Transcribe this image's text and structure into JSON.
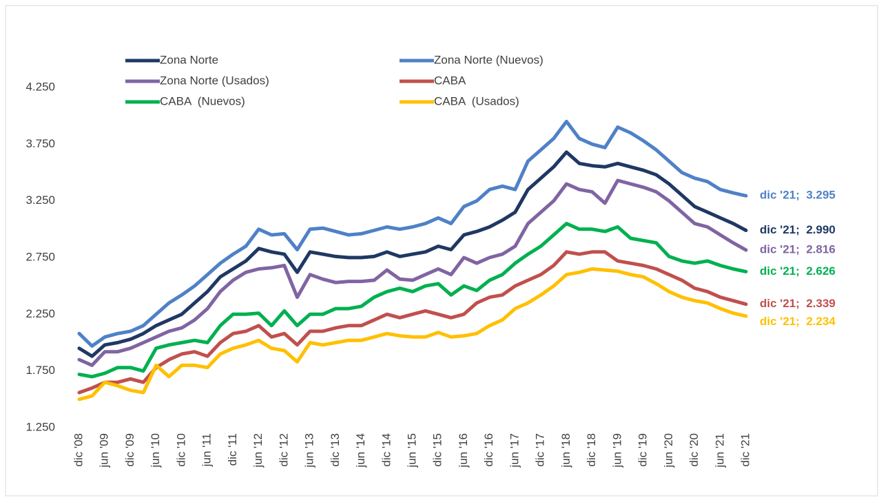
{
  "chart_data": {
    "type": "line",
    "categories": [
      "dic '08",
      null,
      "jun '09",
      null,
      "dic '09",
      null,
      "jun '10",
      null,
      "dic '10",
      null,
      "jun '11",
      null,
      "dic '11",
      null,
      "jun '12",
      null,
      "dic '12",
      null,
      "jun '13",
      null,
      "dic '13",
      null,
      "jun '14",
      null,
      "dic '14",
      null,
      "jun '15",
      null,
      "dic '15",
      null,
      "jun '16",
      null,
      "dic '16",
      null,
      "jun '17",
      null,
      "dic '17",
      null,
      "jun '18",
      null,
      "dic '18",
      null,
      "jun '19",
      null,
      "dic '19",
      null,
      "jun '20",
      null,
      "dic '20",
      null,
      "jun '21",
      null,
      "dic '21"
    ],
    "ylim": [
      1250,
      4250
    ],
    "yticks": [
      {
        "value": 1250,
        "label": "1.250"
      },
      {
        "value": 1750,
        "label": "1.750"
      },
      {
        "value": 2250,
        "label": "2.250"
      },
      {
        "value": 2750,
        "label": "2.750"
      },
      {
        "value": 3250,
        "label": "3.250"
      },
      {
        "value": 3750,
        "label": "3.750"
      },
      {
        "value": 4250,
        "label": "4.250"
      }
    ],
    "grid": false,
    "series": [
      {
        "name": "Zona Norte",
        "color": "#1f3864",
        "end_label": "dic '21;  2.990",
        "values": [
          1950,
          1880,
          1980,
          2000,
          2030,
          2080,
          2150,
          2200,
          2250,
          2350,
          2450,
          2580,
          2650,
          2720,
          2830,
          2800,
          2780,
          2620,
          2800,
          2780,
          2760,
          2750,
          2750,
          2760,
          2800,
          2760,
          2780,
          2800,
          2850,
          2820,
          2950,
          2980,
          3020,
          3080,
          3150,
          3350,
          3450,
          3550,
          3680,
          3580,
          3560,
          3550,
          3580,
          3550,
          3520,
          3480,
          3400,
          3300,
          3200,
          3150,
          3100,
          3050,
          2990
        ]
      },
      {
        "name": "Zona Norte (Nuevos)",
        "color": "#4f81c7",
        "end_label": "dic '21;  3.295",
        "values": [
          2080,
          1970,
          2050,
          2080,
          2100,
          2150,
          2250,
          2350,
          2420,
          2500,
          2600,
          2700,
          2780,
          2850,
          3000,
          2950,
          2960,
          2820,
          3000,
          3010,
          2980,
          2950,
          2960,
          2990,
          3020,
          3000,
          3020,
          3050,
          3100,
          3050,
          3200,
          3250,
          3350,
          3380,
          3350,
          3600,
          3700,
          3800,
          3950,
          3800,
          3750,
          3720,
          3900,
          3850,
          3780,
          3700,
          3600,
          3500,
          3450,
          3420,
          3350,
          3320,
          3295
        ]
      },
      {
        "name": "Zona Norte (Usados)",
        "color": "#8064a2",
        "end_label": "dic '21;  2.816",
        "values": [
          1850,
          1800,
          1920,
          1920,
          1950,
          2000,
          2050,
          2100,
          2130,
          2200,
          2300,
          2450,
          2550,
          2620,
          2650,
          2660,
          2680,
          2400,
          2600,
          2560,
          2530,
          2540,
          2540,
          2550,
          2640,
          2560,
          2550,
          2600,
          2650,
          2600,
          2750,
          2700,
          2750,
          2780,
          2850,
          3050,
          3150,
          3250,
          3400,
          3350,
          3330,
          3230,
          3430,
          3400,
          3370,
          3330,
          3250,
          3150,
          3050,
          3020,
          2950,
          2880,
          2816
        ]
      },
      {
        "name": "CABA",
        "color": "#c0504d",
        "end_label": "dic '21;  2.339",
        "values": [
          1560,
          1600,
          1650,
          1650,
          1680,
          1650,
          1780,
          1850,
          1900,
          1920,
          1880,
          2000,
          2080,
          2100,
          2150,
          2050,
          2080,
          1980,
          2100,
          2100,
          2130,
          2150,
          2150,
          2200,
          2250,
          2220,
          2250,
          2280,
          2250,
          2220,
          2250,
          2350,
          2400,
          2420,
          2500,
          2550,
          2600,
          2680,
          2800,
          2780,
          2800,
          2800,
          2720,
          2700,
          2680,
          2650,
          2600,
          2550,
          2480,
          2450,
          2400,
          2370,
          2339
        ]
      },
      {
        "name": "CABA  (Nuevos)",
        "color": "#00b050",
        "end_label": "dic '21;  2.626",
        "values": [
          1720,
          1700,
          1730,
          1780,
          1780,
          1750,
          1950,
          1980,
          2000,
          2020,
          2000,
          2150,
          2250,
          2250,
          2260,
          2150,
          2280,
          2150,
          2250,
          2250,
          2300,
          2300,
          2320,
          2400,
          2450,
          2480,
          2450,
          2500,
          2520,
          2420,
          2500,
          2460,
          2550,
          2600,
          2700,
          2780,
          2850,
          2950,
          3050,
          3000,
          3000,
          2980,
          3020,
          2920,
          2900,
          2880,
          2760,
          2720,
          2700,
          2720,
          2680,
          2650,
          2626
        ]
      },
      {
        "name": "CABA  (Usados)",
        "color": "#ffc000",
        "end_label": "dic '21;  2.234",
        "values": [
          1500,
          1530,
          1650,
          1620,
          1580,
          1560,
          1800,
          1700,
          1800,
          1800,
          1780,
          1900,
          1950,
          1980,
          2020,
          1950,
          1930,
          1830,
          2000,
          1980,
          2000,
          2020,
          2020,
          2050,
          2080,
          2060,
          2050,
          2050,
          2090,
          2050,
          2060,
          2080,
          2150,
          2200,
          2300,
          2350,
          2420,
          2500,
          2600,
          2620,
          2650,
          2640,
          2630,
          2600,
          2580,
          2520,
          2450,
          2400,
          2370,
          2350,
          2300,
          2260,
          2234
        ]
      }
    ]
  }
}
